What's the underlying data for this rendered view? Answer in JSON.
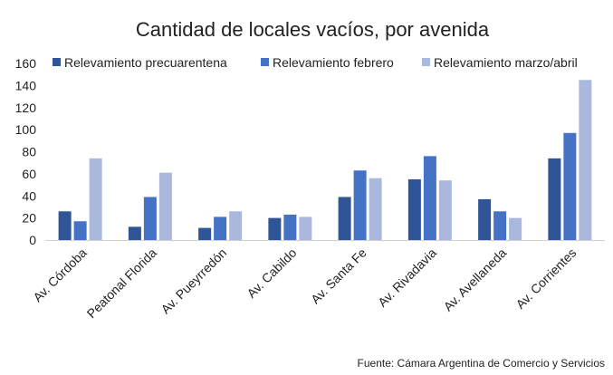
{
  "chart_data": {
    "type": "bar",
    "title": "Cantidad de locales vacíos, por avenida",
    "categories": [
      "Av. Córdoba",
      "Peatonal Florida",
      "Av. Pueyrredón",
      "Av. Cabildo",
      "Av. Santa Fe",
      "Av. Rivadavia",
      "Av. Avellaneda",
      "Av. Corrientes"
    ],
    "series": [
      {
        "name": "Relevamiento precuarentena",
        "color": "#2f5597",
        "values": [
          26,
          12,
          11,
          20,
          39,
          55,
          37,
          74
        ]
      },
      {
        "name": "Relevamiento febrero",
        "color": "#4472c4",
        "values": [
          17,
          39,
          21,
          23,
          63,
          76,
          26,
          97
        ]
      },
      {
        "name": "Relevamiento marzo/abril",
        "color": "#a9b8dc",
        "values": [
          74,
          61,
          26,
          21,
          56,
          54,
          20,
          145
        ]
      }
    ],
    "ylim": [
      0,
      160
    ],
    "yticks": [
      0,
      20,
      40,
      60,
      80,
      100,
      120,
      140,
      160
    ],
    "grid": false,
    "legend": "top",
    "source": "Fuente: Cámara Argentina de Comercio y Servicios"
  }
}
